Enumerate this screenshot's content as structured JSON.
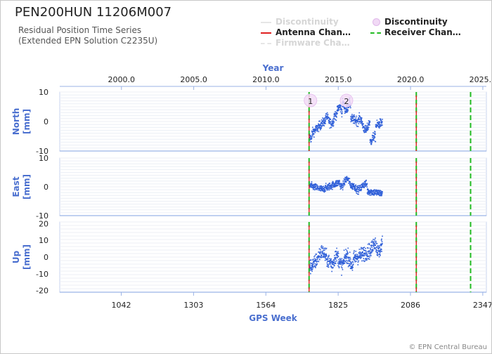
{
  "header": {
    "title": "PEN200HUN 11206M007",
    "subtitle_line1": "Residual Position Time Series",
    "subtitle_line2": "(Extended EPN Solution C2235U)"
  },
  "legend": {
    "items": [
      {
        "label": "Discontinuity",
        "symbol": "line",
        "color": "#e6e6e6",
        "active": false
      },
      {
        "label": "Discontinuity",
        "symbol": "circle",
        "color": "#e9c8f0",
        "active": true
      },
      {
        "label": "Antenna Chan…",
        "symbol": "line",
        "color": "#e02020",
        "active": true
      },
      {
        "label": "Receiver Chan…",
        "symbol": "dashed",
        "color": "#22bb22",
        "active": true
      },
      {
        "label": "Firmware Cha…",
        "symbol": "dashed",
        "color": "#e6e6e6",
        "active": false
      }
    ]
  },
  "footer": "© EPN Central Bureau",
  "chart_data": {
    "type": "scatter",
    "top_axis": {
      "title": "Year",
      "ticks": [
        "2000.0",
        "2005.0",
        "2010.0",
        "2015.0",
        "2020.0",
        "2025.0"
      ],
      "tick_values": [
        2000.0,
        2005.0,
        2010.0,
        2015.0,
        2020.0,
        2025.0
      ]
    },
    "bottom_axis": {
      "title": "GPS Week",
      "ticks": [
        "1042",
        "1303",
        "1564",
        "1825",
        "2086",
        "2347"
      ],
      "tick_values": [
        1042,
        1303,
        1564,
        1825,
        2086,
        2347
      ],
      "range": [
        820,
        2360
      ]
    },
    "series_color": "#2f5fd8",
    "panels": [
      {
        "name": "North",
        "ylabel": "North\n[mm]",
        "ylim": [
          -10,
          10
        ],
        "ticks": [
          "10",
          "0",
          "-10"
        ],
        "tick_values": [
          10,
          0,
          -10
        ]
      },
      {
        "name": "East",
        "ylabel": "East\n[mm]",
        "ylim": [
          -10,
          10
        ],
        "ticks": [
          "10",
          "0",
          "-10"
        ],
        "tick_values": [
          10,
          0,
          -10
        ]
      },
      {
        "name": "Up",
        "ylabel": "Up\n[mm]",
        "ylim": [
          -21,
          21
        ],
        "ticks": [
          "20",
          "10",
          "0",
          "-10",
          "-20"
        ],
        "tick_values": [
          20,
          10,
          0,
          -10,
          -20
        ]
      }
    ],
    "data_window_weeks": [
      1720,
      1985
    ],
    "discontinuities": [
      {
        "label": "1",
        "week": 1720
      },
      {
        "label": "2",
        "week": 1850
      }
    ],
    "antenna_changes_weeks": [
      1720,
      2107
    ],
    "receiver_changes_weeks": [
      1720,
      2107,
      2303
    ]
  }
}
